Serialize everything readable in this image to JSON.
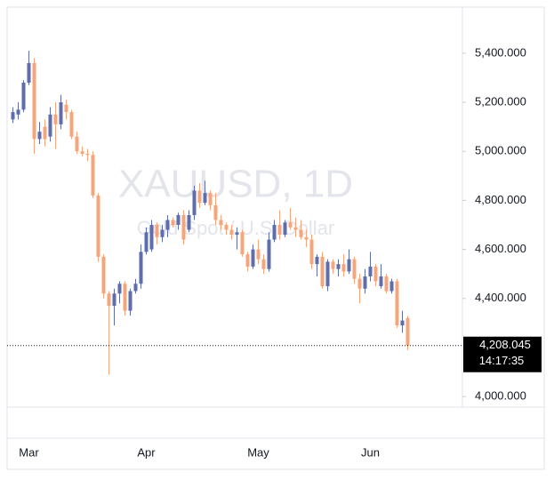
{
  "chart_data": {
    "type": "candlestick",
    "watermark_title": "XAUUSD, 1D",
    "watermark_subtitle": "Gold Spot / U.S. Dollar",
    "categories": [
      null,
      null,
      null,
      "Mar",
      null,
      null,
      null,
      null,
      null,
      null,
      null,
      null,
      null,
      null,
      null,
      null,
      null,
      null,
      null,
      null,
      null,
      null,
      null,
      null,
      null,
      "Apr",
      null,
      null,
      null,
      null,
      null,
      null,
      null,
      null,
      null,
      null,
      null,
      null,
      null,
      null,
      null,
      null,
      null,
      null,
      null,
      null,
      "May",
      null,
      null,
      null,
      null,
      null,
      null,
      null,
      null,
      null,
      null,
      null,
      null,
      null,
      null,
      null,
      null,
      null,
      null,
      null,
      null,
      "Jun",
      null,
      null,
      null,
      null,
      null,
      null,
      null
    ],
    "open": [
      5130,
      5150,
      5170,
      5280,
      5360,
      5050,
      5100,
      5060,
      5150,
      5110,
      5190,
      5160,
      5060,
      5000,
      4990,
      4985,
      4820,
      4570,
      4420,
      4370,
      4420,
      4460,
      4350,
      4430,
      4460,
      4590,
      4600,
      4700,
      4650,
      4680,
      4720,
      4700,
      4740,
      4680,
      4740,
      4840,
      4790,
      4830,
      4780,
      4720,
      4700,
      4680,
      4660,
      4670,
      4580,
      4530,
      4600,
      4560,
      4520,
      4640,
      4700,
      4660,
      4710,
      4690,
      4680,
      4650,
      4640,
      4540,
      4570,
      4450,
      4550,
      4520,
      4540,
      4510,
      4560,
      4480,
      4440,
      4490,
      4530,
      4450,
      4490,
      4430,
      4470,
      4290,
      4320
    ],
    "high": [
      5180,
      5200,
      5290,
      5410,
      5380,
      5120,
      5130,
      5180,
      5200,
      5230,
      5210,
      5170,
      5080,
      5020,
      5010,
      5000,
      4830,
      4580,
      4430,
      4440,
      4470,
      4470,
      4440,
      4480,
      4620,
      4690,
      4720,
      4710,
      4700,
      4740,
      4730,
      4750,
      4760,
      4760,
      4860,
      4870,
      4880,
      4840,
      4830,
      4740,
      4710,
      4700,
      4690,
      4680,
      4590,
      4620,
      4640,
      4580,
      4670,
      4720,
      4760,
      4720,
      4770,
      4730,
      4720,
      4680,
      4660,
      4580,
      4590,
      4560,
      4560,
      4560,
      4580,
      4600,
      4570,
      4500,
      4520,
      4590,
      4540,
      4540,
      4500,
      4480,
      4480,
      4350,
      4330
    ],
    "low": [
      5115,
      5130,
      5160,
      5270,
      4990,
      5030,
      5020,
      5040,
      5010,
      5090,
      5130,
      5050,
      4990,
      4980,
      4960,
      4810,
      4550,
      4400,
      4090,
      4290,
      4380,
      4330,
      4330,
      4420,
      4440,
      4580,
      4590,
      4620,
      4630,
      4650,
      4690,
      4680,
      4620,
      4670,
      4720,
      4770,
      4780,
      4760,
      4700,
      4680,
      4660,
      4640,
      4600,
      4570,
      4510,
      4520,
      4540,
      4500,
      4510,
      4630,
      4640,
      4650,
      4680,
      4650,
      4640,
      4610,
      4520,
      4490,
      4440,
      4430,
      4500,
      4490,
      4490,
      4500,
      4460,
      4380,
      4420,
      4470,
      4450,
      4440,
      4420,
      4420,
      4280,
      4260,
      4190
    ],
    "close": [
      5160,
      5170,
      5280,
      5360,
      5050,
      5080,
      5050,
      5150,
      5110,
      5200,
      5160,
      5060,
      5000,
      4990,
      4985,
      4820,
      4570,
      4420,
      4370,
      4420,
      4460,
      4350,
      4430,
      4460,
      4590,
      4670,
      4700,
      4650,
      4680,
      4720,
      4700,
      4740,
      4640,
      4740,
      4840,
      4790,
      4830,
      4780,
      4720,
      4700,
      4680,
      4660,
      4670,
      4580,
      4530,
      4600,
      4560,
      4520,
      4640,
      4700,
      4660,
      4710,
      4690,
      4680,
      4650,
      4640,
      4540,
      4570,
      4450,
      4550,
      4520,
      4540,
      4510,
      4560,
      4480,
      4440,
      4490,
      4530,
      4470,
      4490,
      4430,
      4470,
      4290,
      4310,
      4208.045
    ],
    "last_value_label": "4,208.045",
    "countdown": "14:17:35",
    "up_color": "#5d6db0",
    "down_color": "#f7a47a",
    "ylim": [
      3957,
      5588
    ],
    "yticks": [
      {
        "value": 4000,
        "label": "4,000.000"
      },
      {
        "value": 4400,
        "label": "4,400.000"
      },
      {
        "value": 4600,
        "label": "4,600.000"
      },
      {
        "value": 4800,
        "label": "4,800.000"
      },
      {
        "value": 5000,
        "label": "5,000.000"
      },
      {
        "value": 5200,
        "label": "5,200.000"
      },
      {
        "value": 5400,
        "label": "5,400.000"
      }
    ]
  }
}
